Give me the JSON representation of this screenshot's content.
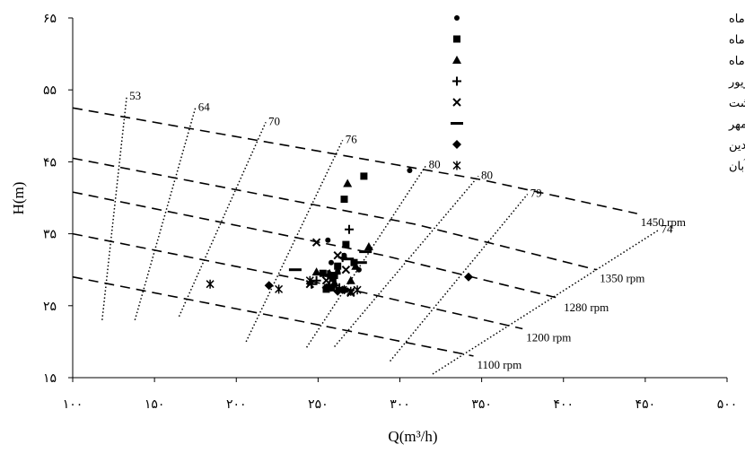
{
  "chart_data": {
    "type": "scatter",
    "title": "",
    "xlabel": "Q(m³/h)",
    "ylabel": "H(m)",
    "xlim": [
      100,
      500
    ],
    "ylim": [
      15,
      65
    ],
    "x_ticks": [
      "۱۰۰",
      "۱۵۰",
      "۲۰۰",
      "۲۵۰",
      "۳۰۰",
      "۳۵۰",
      "۴۰۰",
      "۴۵۰",
      "۵۰۰"
    ],
    "y_ticks": [
      "۱۵",
      "۲۵",
      "۳۵",
      "۴۵",
      "۵۵",
      "۶۵"
    ],
    "legend_position": "top-right",
    "pump_curves": [
      {
        "label": "1450 rpm",
        "points": [
          [
            100,
            52.5
          ],
          [
            350,
            42.5
          ],
          [
            445,
            37.8
          ]
        ]
      },
      {
        "label": "1350 rpm",
        "points": [
          [
            100,
            45.5
          ],
          [
            310,
            36.3
          ],
          [
            420,
            30.0
          ]
        ]
      },
      {
        "label": "1280 rpm",
        "points": [
          [
            100,
            40.8
          ],
          [
            290,
            32.0
          ],
          [
            398,
            26.0
          ]
        ]
      },
      {
        "label": "1200 rpm",
        "points": [
          [
            100,
            35.0
          ],
          [
            265,
            27.5
          ],
          [
            375,
            21.8
          ]
        ]
      },
      {
        "label": "1100 rpm",
        "points": [
          [
            100,
            29.0
          ],
          [
            240,
            22.8
          ],
          [
            345,
            18.0
          ]
        ]
      }
    ],
    "efficiency_curves": [
      {
        "label": "53",
        "points": [
          [
            118,
            23.0
          ],
          [
            133,
            54.0
          ]
        ]
      },
      {
        "label": "64",
        "points": [
          [
            138,
            23.0
          ],
          [
            175,
            52.5
          ]
        ]
      },
      {
        "label": "70",
        "points": [
          [
            165,
            23.5
          ],
          [
            218,
            50.5
          ]
        ]
      },
      {
        "label": "76",
        "points": [
          [
            206,
            20.0
          ],
          [
            265,
            48.0
          ]
        ]
      },
      {
        "label": "80",
        "points": [
          [
            243,
            19.2
          ],
          [
            316,
            44.5
          ]
        ]
      },
      {
        "label": "80",
        "points": [
          [
            260,
            19.3
          ],
          [
            348,
            43.0
          ]
        ]
      },
      {
        "label": "79",
        "points": [
          [
            294,
            17.3
          ],
          [
            378,
            40.5
          ]
        ]
      },
      {
        "label": "74",
        "points": [
          [
            320,
            15.5
          ],
          [
            458,
            35.5
          ]
        ]
      }
    ],
    "series": [
      {
        "name": "نقطه کار هر طبقه از پمپ  در  تیر ماه",
        "marker": "circle",
        "points": [
          [
            256,
            34.1
          ],
          [
            266,
            32.0
          ],
          [
            275,
            30.0
          ],
          [
            306,
            43.8
          ],
          [
            258,
            31.0
          ],
          [
            262,
            29.8
          ]
        ]
      },
      {
        "name": "نقطه کار هر طبقه از پمپ در مرداد ماه",
        "marker": "square",
        "points": [
          [
            278,
            43.0
          ],
          [
            266,
            39.8
          ],
          [
            267,
            33.5
          ],
          [
            262,
            30.5
          ],
          [
            253,
            29.5
          ],
          [
            259,
            28.8
          ],
          [
            260,
            29.2
          ],
          [
            272,
            31.0
          ],
          [
            258,
            27.5
          ],
          [
            255,
            27.3
          ]
        ]
      },
      {
        "name": "نقطه کار هر طبقه از پمپ در خرداد ماه",
        "marker": "triangle",
        "points": [
          [
            268,
            42.0
          ],
          [
            281,
            33.2
          ],
          [
            273,
            30.5
          ],
          [
            257,
            29.5
          ],
          [
            249,
            29.7
          ],
          [
            260,
            28.2
          ],
          [
            266,
            27.3
          ],
          [
            270,
            28.5
          ]
        ]
      },
      {
        "name": "نقطه کار هر طبقه از پمپ در ماه شهریور",
        "marker": "plus",
        "points": [
          [
            269,
            35.6
          ],
          [
            265,
            31.7
          ],
          [
            256,
            29.3
          ],
          [
            249,
            28.5
          ],
          [
            246,
            28.0
          ],
          [
            257,
            27.8
          ],
          [
            263,
            27.5
          ]
        ]
      },
      {
        "name": "نقطه کار هر طبقه از پمپ در ماه اردیبهشت",
        "marker": "x",
        "points": [
          [
            249,
            33.8
          ],
          [
            262,
            32.0
          ],
          [
            267,
            30.0
          ],
          [
            255,
            28.5
          ],
          [
            245,
            28.0
          ],
          [
            263,
            27.2
          ],
          [
            270,
            26.8
          ]
        ]
      },
      {
        "name": "نقطه کار هر طبقه از پمپ در ماه مهر",
        "marker": "dash",
        "points": [
          [
            236,
            30.0
          ],
          [
            276,
            31.0
          ],
          [
            279,
            32.5
          ],
          [
            268,
            31.5
          ],
          [
            260,
            29.5
          ]
        ]
      },
      {
        "name": "نقطه کار هر طبقه از پمپ در ماه فروردین",
        "marker": "diamond",
        "points": [
          [
            342,
            29.0
          ],
          [
            220,
            27.8
          ],
          [
            255,
            27.5
          ],
          [
            262,
            27.0
          ],
          [
            266,
            27.2
          ]
        ]
      },
      {
        "name": "نقطه کار هر طبقه از پمپ در ماه آبان",
        "marker": "asterisk",
        "points": [
          [
            184,
            28.0
          ],
          [
            226,
            27.3
          ],
          [
            245,
            28.5
          ],
          [
            256,
            27.5
          ],
          [
            270,
            27.0
          ],
          [
            274,
            27.2
          ]
        ]
      }
    ]
  }
}
